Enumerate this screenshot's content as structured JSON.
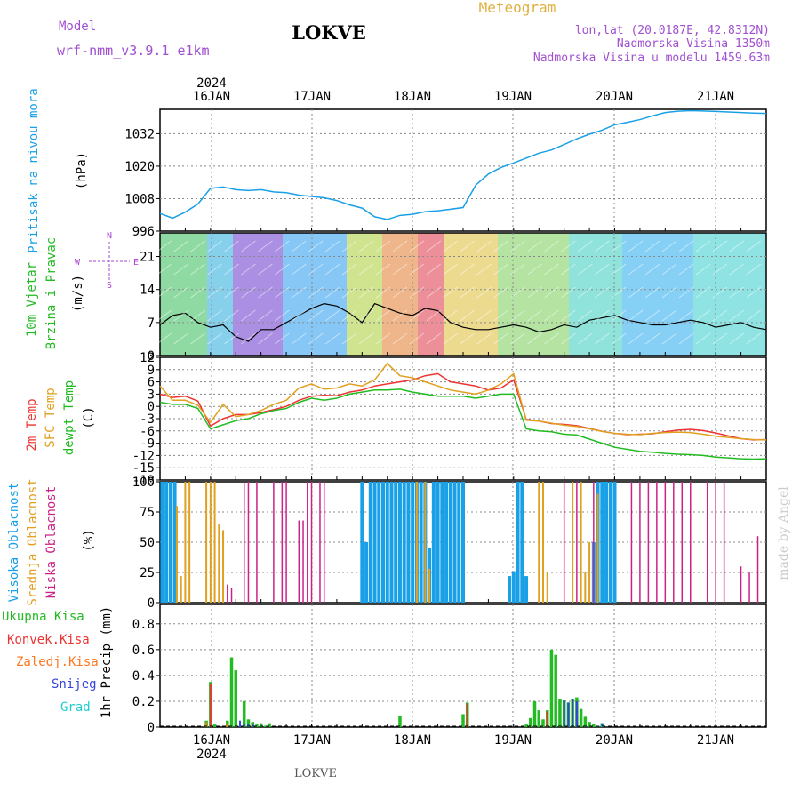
{
  "header": {
    "model_label": "Model",
    "model_name": "wrf-nmm_v3.9.1  e1km",
    "station": "LOKVE",
    "title": "Meteogram",
    "coords": "lon,lat (20.0187E, 42.8312N)",
    "elevation": "Nadmorska Visina 1350m",
    "model_elevation": "Nadmorska Visina u modelu 1459.63m",
    "footer_station": "LOKVE",
    "credit": "made by Angel"
  },
  "colors": {
    "pressure": "#1aa0e6",
    "wind_axis": "#22bb22",
    "wind_dir": "#aa44cc",
    "temp2m": "#ee3333",
    "sfc": "#e0a020",
    "dewpt": "#22bb22",
    "high_cloud": "#1aa0e6",
    "mid_cloud": "#e0a020",
    "low_cloud": "#cc2288",
    "total_precip": "#22bb22",
    "convective": "#ee3333",
    "freezing": "#ff7722",
    "snow": "#3344dd",
    "hail": "#22cccc",
    "grid": "#888888",
    "title_orange": "#e0b040",
    "model_purple": "#a050d0"
  },
  "time_axis": {
    "year": "2024",
    "days": [
      "16JAN",
      "17JAN",
      "18JAN",
      "19JAN",
      "20JAN",
      "21JAN"
    ],
    "start_hour": 0,
    "end_hour": 144
  },
  "chart_data": [
    {
      "name": "pressure",
      "type": "line",
      "ylabel_title": "Pritisak na nivou mora",
      "ylabel_unit": "(hPa)",
      "ylim": [
        996,
        1041
      ],
      "yticks": [
        "996",
        "1008",
        "1020",
        "1032"
      ],
      "grid": true,
      "x": [
        0,
        3,
        6,
        9,
        12,
        15,
        18,
        21,
        24,
        27,
        30,
        33,
        36,
        39,
        42,
        45,
        48,
        51,
        54,
        57,
        60,
        63,
        66,
        69,
        72,
        75,
        78,
        81,
        84,
        87,
        90,
        93,
        96,
        99,
        102,
        105,
        108,
        111,
        114,
        117,
        120,
        123,
        126,
        129,
        132,
        135,
        138,
        141,
        144
      ],
      "values": [
        1002.5,
        1000.8,
        1003,
        1006,
        1011.8,
        1012.3,
        1011.3,
        1011,
        1011.3,
        1010.5,
        1010.2,
        1009.3,
        1008.8,
        1008.3,
        1007.3,
        1005.7,
        1004.5,
        1001.3,
        1000.3,
        1001.8,
        1002.2,
        1003.2,
        1003.5,
        1004.1,
        1004.7,
        1013,
        1017.1,
        1019.5,
        1021.2,
        1023,
        1024.8,
        1026,
        1028,
        1030.1,
        1031.8,
        1033.3,
        1035.3,
        1036.2,
        1037.2,
        1038.6,
        1039.8,
        1040.3,
        1040.5,
        1040.4,
        1040.2,
        1040,
        1039.8,
        1039.6,
        1039.5
      ]
    },
    {
      "name": "wind",
      "type": "line",
      "ylabel_title": "10m Vjetar",
      "ylabel_sub": "Brzina i Pravac",
      "ylabel_unit": "(m/s)",
      "dir_legend": "N",
      "dir_legend_w": "W",
      "dir_legend_e": "E",
      "dir_legend_s": "S",
      "ylim": [
        0,
        26
      ],
      "yticks": [
        "0",
        "7",
        "14",
        "21"
      ],
      "x": [
        0,
        3,
        6,
        9,
        12,
        15,
        18,
        21,
        24,
        27,
        30,
        33,
        36,
        39,
        42,
        45,
        48,
        51,
        54,
        57,
        60,
        63,
        66,
        69,
        72,
        75,
        78,
        81,
        84,
        87,
        90,
        93,
        96,
        99,
        102,
        105,
        108,
        111,
        114,
        117,
        120,
        123,
        126,
        129,
        132,
        135,
        138,
        141,
        144
      ],
      "values": [
        6.5,
        8.5,
        9,
        7,
        6,
        6.5,
        4,
        3,
        5.5,
        5.5,
        7,
        8.5,
        10,
        11,
        10.5,
        9,
        7,
        11,
        10,
        9,
        8.5,
        10,
        9.5,
        7,
        6,
        5.5,
        5.5,
        6,
        6.5,
        6,
        5,
        5.5,
        6.5,
        6,
        7.5,
        8,
        8.5,
        7.5,
        7,
        6.5,
        6.5,
        7,
        7.5,
        7,
        6,
        6.5,
        7,
        6,
        5.5
      ]
    },
    {
      "name": "temperature",
      "type": "line",
      "ylabel_title": "2m Temp",
      "ylabel_title2": "SFC Temp",
      "ylabel_title3": "dewpt Temp",
      "ylabel_unit": "(C)",
      "ylim": [
        -18,
        12
      ],
      "yticks": [
        "-18",
        "-15",
        "-12",
        "-9",
        "-6",
        "-3",
        "0",
        "3",
        "6",
        "9",
        "12"
      ],
      "x": [
        0,
        3,
        6,
        9,
        12,
        15,
        18,
        21,
        24,
        27,
        30,
        33,
        36,
        39,
        42,
        45,
        48,
        51,
        54,
        57,
        60,
        63,
        66,
        69,
        72,
        75,
        78,
        81,
        84,
        87,
        90,
        93,
        96,
        99,
        102,
        105,
        108,
        111,
        114,
        117,
        120,
        123,
        126,
        129,
        132,
        135,
        138,
        141,
        144
      ],
      "series": [
        {
          "name": "2m Temp",
          "values": [
            3,
            2.2,
            2.5,
            1.3,
            -4.8,
            -3,
            -2,
            -2,
            -1.5,
            -0.8,
            0,
            1.5,
            2.5,
            2.7,
            2.6,
            3.5,
            4,
            5,
            5.5,
            6,
            6.5,
            7.5,
            8,
            6,
            5.5,
            5,
            4,
            4.5,
            6.5,
            -3.2,
            -3.6,
            -4.2,
            -4.4,
            -4.7,
            -5.4,
            -6.1,
            -6.6,
            -6.9,
            -6.8,
            -6.7,
            -6.2,
            -5.8,
            -5.6,
            -5.9,
            -6.5,
            -7.2,
            -7.9,
            -8.2,
            -8.1
          ]
        },
        {
          "name": "SFC Temp",
          "values": [
            5,
            1.5,
            1.5,
            0.3,
            -3.9,
            0.5,
            -2.5,
            -2,
            -1,
            0.5,
            1.5,
            4.5,
            5.5,
            4.2,
            4.5,
            5.5,
            5,
            6.5,
            10.5,
            7.5,
            7,
            6,
            5,
            4,
            3.5,
            3,
            4,
            5.5,
            8,
            -3.4,
            -3.6,
            -4.1,
            -4.6,
            -4.9,
            -5.5,
            -6.1,
            -6.6,
            -6.8,
            -6.9,
            -6.6,
            -6.4,
            -6.3,
            -6.4,
            -6.8,
            -7.3,
            -7.6,
            -7.9,
            -8.1,
            -8.2
          ]
        },
        {
          "name": "dewpt Temp",
          "values": [
            1,
            0.5,
            0.5,
            -0.5,
            -5.5,
            -4.5,
            -3.5,
            -3,
            -1.8,
            -1,
            -0.5,
            1,
            2,
            1.5,
            2,
            3,
            3.5,
            4,
            4,
            4.2,
            3.5,
            3,
            2.5,
            2.5,
            2.5,
            2,
            2.5,
            3,
            3,
            -5.5,
            -6,
            -6.2,
            -6.8,
            -7,
            -8,
            -9,
            -10,
            -10.5,
            -11,
            -11.2,
            -11.5,
            -11.7,
            -11.8,
            -12,
            -12.4,
            -12.6,
            -12.8,
            -12.9,
            -12.8
          ]
        }
      ]
    },
    {
      "name": "clouds",
      "type": "bar",
      "ylabel_title": "Visoka Oblacnost",
      "ylabel_title2": "Srednja Oblacnost",
      "ylabel_title3": "Niska Oblacnost",
      "ylabel_unit": "(%)",
      "ylim": [
        0,
        100
      ],
      "yticks": [
        "0",
        "25",
        "50",
        "75",
        "100"
      ],
      "series": [
        {
          "name": "Visoka Oblacnost",
          "x": [
            0.5,
            1.5,
            2.5,
            3.5,
            48,
            49,
            50,
            51,
            52,
            53,
            54,
            55,
            56,
            57,
            58,
            59,
            60,
            61,
            62,
            63,
            64,
            65,
            66,
            67,
            68,
            69,
            70,
            71,
            72,
            83,
            84,
            85,
            86,
            87,
            103,
            104,
            105,
            106,
            107,
            108
          ],
          "values": [
            100,
            100,
            100,
            100,
            100,
            50,
            100,
            100,
            100,
            100,
            100,
            100,
            100,
            100,
            100,
            100,
            100,
            100,
            100,
            100,
            45,
            100,
            100,
            100,
            100,
            100,
            100,
            100,
            100,
            22,
            26,
            100,
            100,
            22,
            50,
            100,
            100,
            100,
            100,
            100
          ]
        },
        {
          "name": "Srednja Oblacnost",
          "x": [
            4,
            5,
            6,
            7,
            11,
            12,
            13,
            14,
            15,
            61,
            63,
            64,
            90,
            91,
            92,
            98,
            100,
            101,
            102,
            104
          ],
          "values": [
            80,
            22,
            100,
            100,
            100,
            100,
            100,
            65,
            60,
            100,
            100,
            28,
            100,
            100,
            25,
            100,
            100,
            25,
            50,
            90
          ]
        },
        {
          "name": "Niska Oblacnost",
          "x": [
            16,
            17,
            20,
            21,
            23,
            27,
            29,
            30,
            33,
            34,
            35,
            36,
            38,
            39,
            96,
            99,
            103,
            112,
            114,
            116,
            118,
            120,
            122,
            124,
            126,
            130,
            132,
            134,
            138,
            140,
            142
          ],
          "values": [
            15,
            12,
            100,
            100,
            100,
            100,
            100,
            100,
            68,
            68,
            100,
            100,
            100,
            100,
            100,
            100,
            100,
            100,
            100,
            100,
            100,
            100,
            100,
            100,
            100,
            100,
            100,
            100,
            30,
            25,
            55
          ]
        }
      ]
    },
    {
      "name": "precipitation",
      "type": "bar",
      "ylabel_title": "1hr Precip (mm)",
      "legend": [
        "Ukupna Kisa",
        "Konvek.Kisa",
        "Zaledj.Kisa",
        "Snijeg",
        "Grad"
      ],
      "ylim": [
        0,
        0.95
      ],
      "yticks": [
        "0",
        "0.2",
        "0.4",
        "0.6",
        "0.8"
      ],
      "series": [
        {
          "name": "Ukupna Kisa",
          "x": [
            11,
            12,
            13,
            16,
            17,
            18,
            20,
            21,
            22,
            23,
            24,
            25,
            26,
            57,
            72,
            73,
            87,
            88,
            89,
            90,
            91,
            92,
            93,
            94,
            95,
            96,
            97,
            98,
            99,
            100,
            101,
            102,
            103,
            104,
            105
          ],
          "values": [
            0.05,
            0.35,
            0.02,
            0.05,
            0.54,
            0.44,
            0.2,
            0.06,
            0.04,
            0.02,
            0.03,
            0.01,
            0.03,
            0.09,
            0.1,
            0.19,
            0.02,
            0.07,
            0.2,
            0.13,
            0.06,
            0.13,
            0.6,
            0.56,
            0.22,
            0.21,
            0.19,
            0.22,
            0.23,
            0.14,
            0.08,
            0.04,
            0.02,
            0.01,
            0.03
          ]
        },
        {
          "name": "Konvek.Kisa",
          "x": [
            12,
            73,
            92
          ],
          "values": [
            0.33,
            0.18,
            0.12
          ]
        },
        {
          "name": "Zaledj.Kisa",
          "x": [
            11,
            16
          ],
          "values": [
            0.04,
            0.03
          ]
        },
        {
          "name": "Snijeg",
          "x": [
            19,
            20,
            21,
            22,
            96,
            97,
            98,
            99,
            104,
            105
          ],
          "values": [
            0.05,
            0.03,
            0.02,
            0.02,
            0.21,
            0.19,
            0.22,
            0.2,
            0.01,
            0.03
          ]
        },
        {
          "name": "Grad",
          "x": [
            21,
            105
          ],
          "values": [
            0.01,
            0.01
          ]
        }
      ]
    }
  ]
}
